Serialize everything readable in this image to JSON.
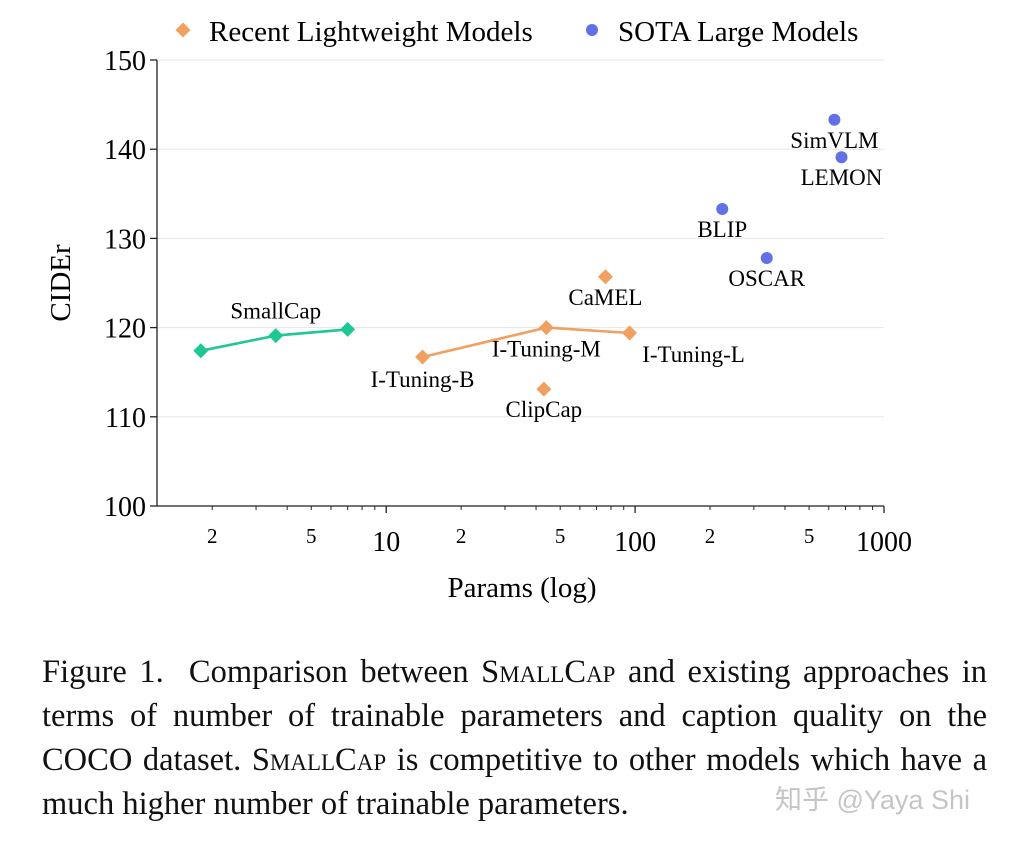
{
  "chart_data": {
    "type": "scatter",
    "xlabel": "Params (log)",
    "ylabel": "CIDEr",
    "xscale": "log",
    "xlim": [
      1.2,
      1000
    ],
    "ylim": [
      100,
      150
    ],
    "yticks": [
      100,
      110,
      120,
      130,
      140,
      150
    ],
    "xticks_major": [
      {
        "v": 10,
        "label": "10"
      },
      {
        "v": 100,
        "label": "100"
      },
      {
        "v": 1000,
        "label": "1000"
      }
    ],
    "xticks_minor": [
      {
        "v": 2,
        "label": "2"
      },
      {
        "v": 5,
        "label": "5"
      },
      {
        "v": 20,
        "label": "2"
      },
      {
        "v": 50,
        "label": "5"
      },
      {
        "v": 200,
        "label": "2"
      },
      {
        "v": 500,
        "label": "5"
      }
    ],
    "grid": "horizontal",
    "legend": {
      "placement": "top",
      "entries": [
        {
          "label": "Recent Lightweight Models",
          "marker": "diamond",
          "color": "#f0a060"
        },
        {
          "label": "SOTA Large Models",
          "marker": "circle",
          "color": "#6272e6"
        }
      ]
    },
    "series": [
      {
        "name": "SmallCap",
        "color": "#1ec894",
        "marker": "diamond",
        "connected": true,
        "points": [
          {
            "x": 1.8,
            "y": 117.4
          },
          {
            "x": 3.6,
            "y": 119.1
          },
          {
            "x": 7.0,
            "y": 119.8
          }
        ],
        "label": "SmallCap"
      },
      {
        "name": "I-Tuning",
        "color": "#f0a060",
        "marker": "diamond",
        "connected": true,
        "points": [
          {
            "x": 14,
            "y": 116.7,
            "label": "I-Tuning-B"
          },
          {
            "x": 44,
            "y": 120.0,
            "label": "I-Tuning-M"
          },
          {
            "x": 95,
            "y": 119.4,
            "label": "I-Tuning-L"
          }
        ]
      },
      {
        "name": "CaMEL",
        "color": "#f0a060",
        "marker": "diamond",
        "connected": false,
        "points": [
          {
            "x": 76,
            "y": 125.7,
            "label": "CaMEL"
          }
        ]
      },
      {
        "name": "ClipCap",
        "color": "#f0a060",
        "marker": "diamond",
        "connected": false,
        "points": [
          {
            "x": 43,
            "y": 113.1,
            "label": "ClipCap"
          }
        ]
      },
      {
        "name": "SOTA",
        "color": "#6272e6",
        "marker": "circle",
        "connected": false,
        "points": [
          {
            "x": 224,
            "y": 133.3,
            "label": "BLIP"
          },
          {
            "x": 338,
            "y": 127.8,
            "label": "OSCAR"
          },
          {
            "x": 632,
            "y": 143.3,
            "label": "SimVLM"
          },
          {
            "x": 675,
            "y": 139.1,
            "label": "LEMON"
          }
        ]
      }
    ]
  },
  "caption": {
    "fig": "Figure 1.",
    "part1": "Comparison between ",
    "name1": "SmallCap",
    "part2": " and existing approaches in terms of number of trainable parameters and caption quality on the COCO dataset. ",
    "name2": "SmallCap",
    "part3": " is competitive to other models which have a much higher number of trainable parameters."
  },
  "watermark": "知乎 @Yaya Shi"
}
